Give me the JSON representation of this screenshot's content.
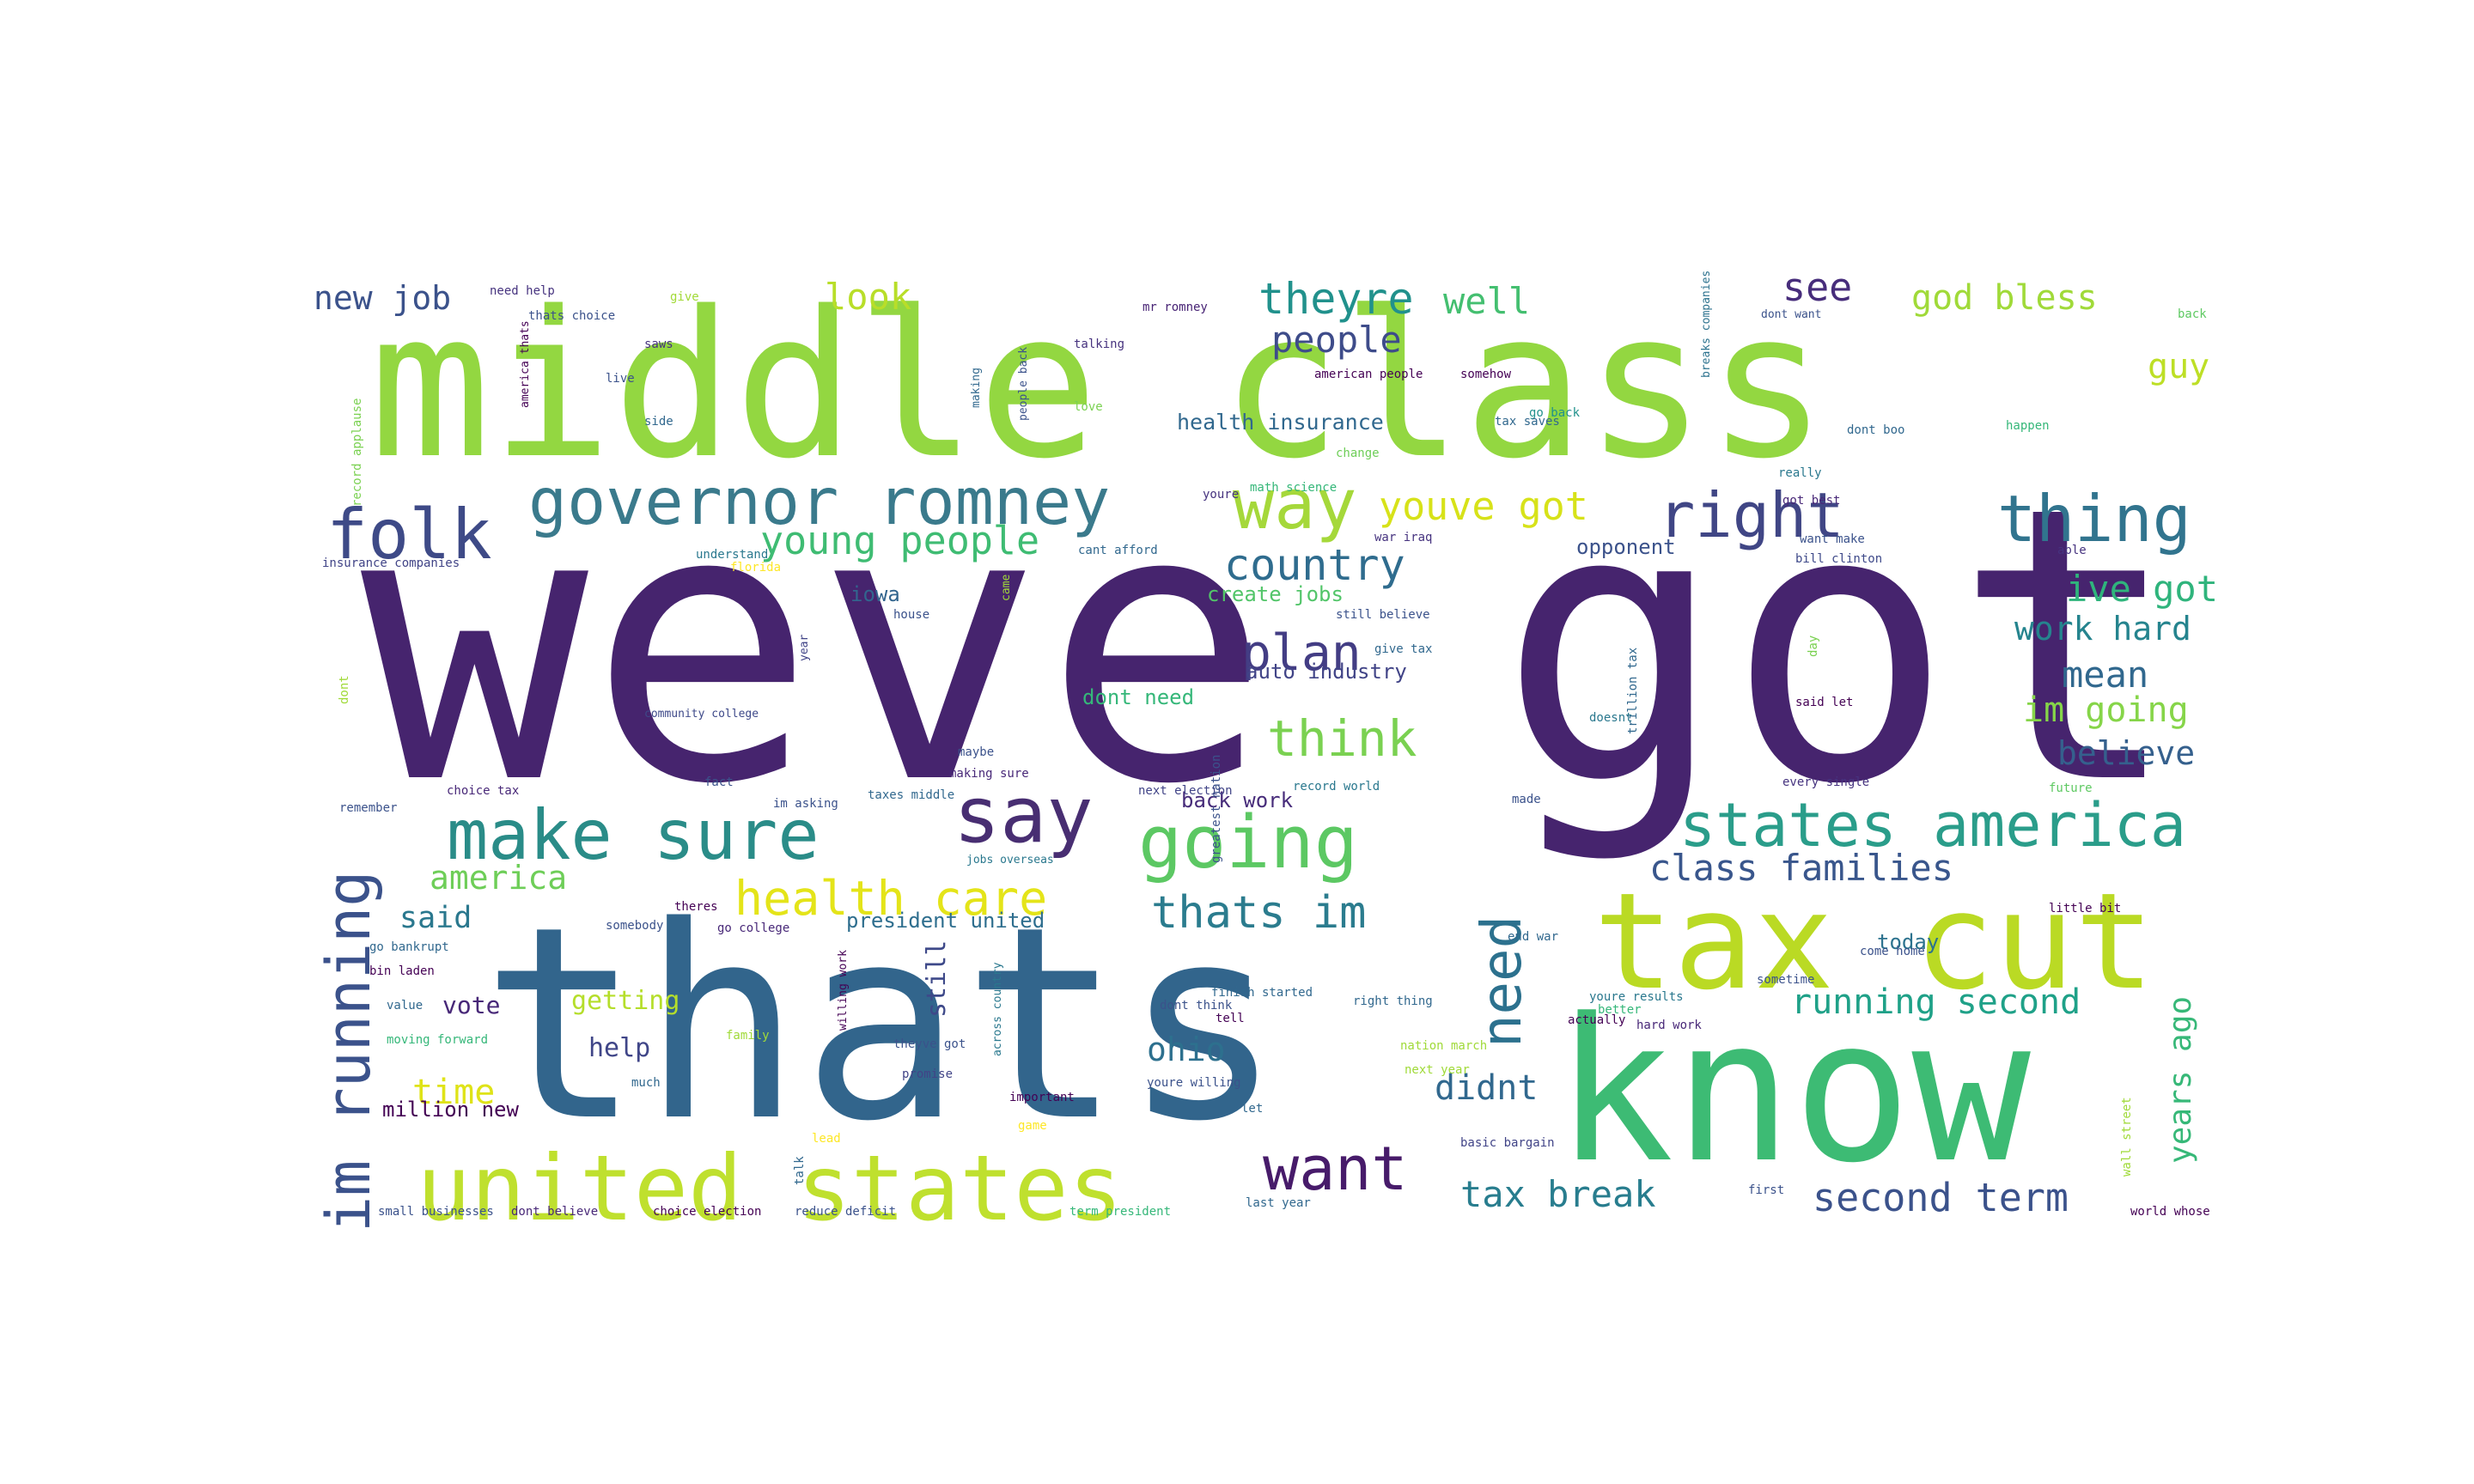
{
  "words": [
    {
      "text": "weve got",
      "color": "#46246e"
    },
    {
      "text": "middle class",
      "color": "#93d741"
    },
    {
      "text": "thats",
      "color": "#32658c"
    },
    {
      "text": "know",
      "color": "#3dbb74"
    },
    {
      "text": "tax cut",
      "color": "#bada24"
    },
    {
      "text": "united states",
      "color": "#bfe02e"
    },
    {
      "text": "governor romney",
      "color": "#3a7a8c"
    },
    {
      "text": "folk",
      "color": "#3e4a87"
    },
    {
      "text": "way",
      "color": "#a5d83a"
    },
    {
      "text": "right",
      "color": "#404685"
    },
    {
      "text": "thing",
      "color": "#31748e"
    },
    {
      "text": "make sure",
      "color": "#2a8c88"
    },
    {
      "text": "say",
      "color": "#482e72"
    },
    {
      "text": "going",
      "color": "#5cc863"
    },
    {
      "text": "states america",
      "color": "#2a9d8a"
    },
    {
      "text": "im running",
      "color": "#3b528b"
    },
    {
      "text": "health care",
      "color": "#e4e419"
    },
    {
      "text": "thats im",
      "color": "#2b7c8e"
    },
    {
      "text": "need",
      "color": "#2c718e"
    },
    {
      "text": "want",
      "color": "#471b6a"
    },
    {
      "text": "think",
      "color": "#7ad151"
    },
    {
      "text": "plan",
      "color": "#433d84"
    },
    {
      "text": "country",
      "color": "#2f6c8e"
    },
    {
      "text": "young people",
      "color": "#3fbc73"
    },
    {
      "text": "youve got",
      "color": "#d7e219"
    },
    {
      "text": "theyre",
      "color": "#21918c"
    },
    {
      "text": "well",
      "color": "#44bf70"
    },
    {
      "text": "people",
      "color": "#3e4c8a"
    },
    {
      "text": "look",
      "color": "#b8de29"
    },
    {
      "text": "new job",
      "color": "#3b528b"
    },
    {
      "text": "see",
      "color": "#472d7b"
    },
    {
      "text": "god bless",
      "color": "#a0da39"
    },
    {
      "text": "guy",
      "color": "#bddf26"
    },
    {
      "text": "ive got",
      "color": "#2fb47c"
    },
    {
      "text": "work hard",
      "color": "#25848e"
    },
    {
      "text": "mean",
      "color": "#31688e"
    },
    {
      "text": "im going",
      "color": "#86d549"
    },
    {
      "text": "believe",
      "color": "#35608d"
    },
    {
      "text": "class families",
      "color": "#39568c"
    },
    {
      "text": "america",
      "color": "#6ece58"
    },
    {
      "text": "said",
      "color": "#2a788e"
    },
    {
      "text": "running second",
      "color": "#1fa188"
    },
    {
      "text": "years ago",
      "color": "#37b878"
    },
    {
      "text": "tax break",
      "color": "#287d8e"
    },
    {
      "text": "second term",
      "color": "#3b528b"
    },
    {
      "text": "didnt",
      "color": "#31688e"
    },
    {
      "text": "ohio",
      "color": "#2d708e"
    },
    {
      "text": "time",
      "color": "#dfe318"
    },
    {
      "text": "help",
      "color": "#404688"
    },
    {
      "text": "vote",
      "color": "#482878"
    },
    {
      "text": "getting",
      "color": "#b5de2b"
    },
    {
      "text": "iowa",
      "color": "#32658e"
    },
    {
      "text": "create jobs",
      "color": "#52c569"
    },
    {
      "text": "auto industry",
      "color": "#414487"
    },
    {
      "text": "dont need",
      "color": "#35b779"
    },
    {
      "text": "back work",
      "color": "#472c7a"
    },
    {
      "text": "opponent",
      "color": "#3b528b"
    },
    {
      "text": "health insurance",
      "color": "#31688e"
    },
    {
      "text": "today",
      "color": "#2c728e"
    },
    {
      "text": "president united",
      "color": "#2e6e8e"
    },
    {
      "text": "million new",
      "color": "#440154"
    },
    {
      "text": "still",
      "color": "#3e4989"
    },
    {
      "text": "need help",
      "color": "#46337f"
    },
    {
      "text": "thats choice",
      "color": "#3b528b"
    },
    {
      "text": "give",
      "color": "#a2da37"
    },
    {
      "text": "mr romney",
      "color": "#482475"
    },
    {
      "text": "talking",
      "color": "#46327e"
    },
    {
      "text": "american people",
      "color": "#440154"
    },
    {
      "text": "people back",
      "color": "#3b528b"
    },
    {
      "text": "making",
      "color": "#31688e"
    },
    {
      "text": "love",
      "color": "#7ad151"
    },
    {
      "text": "change",
      "color": "#6ece58"
    },
    {
      "text": "dont want",
      "color": "#3b528b"
    },
    {
      "text": "somehow",
      "color": "#440154"
    },
    {
      "text": "go back",
      "color": "#21918c"
    },
    {
      "text": "tax saves",
      "color": "#31688e"
    },
    {
      "text": "dont boo",
      "color": "#31688e"
    },
    {
      "text": "happen",
      "color": "#35b779"
    },
    {
      "text": "breaks companies",
      "color": "#2c728e"
    },
    {
      "text": "back",
      "color": "#5ec962"
    },
    {
      "text": "got best",
      "color": "#482878"
    },
    {
      "text": "able",
      "color": "#46337f"
    },
    {
      "text": "bill clinton",
      "color": "#3e4989"
    },
    {
      "text": "want make",
      "color": "#3b528b"
    },
    {
      "text": "math science",
      "color": "#35b779"
    },
    {
      "text": "cant afford",
      "color": "#31688e"
    },
    {
      "text": "understand",
      "color": "#2a788e"
    },
    {
      "text": "insurance companies",
      "color": "#414487"
    },
    {
      "text": "florida",
      "color": "#fde725"
    },
    {
      "text": "record applause",
      "color": "#7ad151"
    },
    {
      "text": "america thats",
      "color": "#440154"
    },
    {
      "text": "saws",
      "color": "#46337f"
    },
    {
      "text": "live",
      "color": "#3b528b"
    },
    {
      "text": "side",
      "color": "#31688e"
    },
    {
      "text": "house",
      "color": "#3b528b"
    },
    {
      "text": "community college",
      "color": "#3e4989"
    },
    {
      "text": "im asking",
      "color": "#3b528b"
    },
    {
      "text": "maybe",
      "color": "#3b528b"
    },
    {
      "text": "making sure",
      "color": "#482878"
    },
    {
      "text": "taxes middle",
      "color": "#31688e"
    },
    {
      "text": "fact",
      "color": "#3b528b"
    },
    {
      "text": "choice tax",
      "color": "#482878"
    },
    {
      "text": "remember",
      "color": "#3b528b"
    },
    {
      "text": "dont",
      "color": "#a0da39"
    },
    {
      "text": "year",
      "color": "#414487"
    },
    {
      "text": "still believe",
      "color": "#3b528b"
    },
    {
      "text": "give tax",
      "color": "#31688e"
    },
    {
      "text": "said let",
      "color": "#440154"
    },
    {
      "text": "trillion tax",
      "color": "#31688e"
    },
    {
      "text": "doesnt",
      "color": "#2a788e"
    },
    {
      "text": "every single",
      "color": "#46337f"
    },
    {
      "text": "future",
      "color": "#5ec962"
    },
    {
      "text": "made",
      "color": "#3b528b"
    },
    {
      "text": "next election",
      "color": "#414487"
    },
    {
      "text": "record world",
      "color": "#2a788e"
    },
    {
      "text": "greatest nation",
      "color": "#3b528b"
    },
    {
      "text": "little bit",
      "color": "#440154"
    },
    {
      "text": "jobs overseas",
      "color": "#2a788e"
    },
    {
      "text": "theres",
      "color": "#440154"
    },
    {
      "text": "somebody",
      "color": "#3b528b"
    },
    {
      "text": "go college",
      "color": "#482878"
    },
    {
      "text": "go bankrupt",
      "color": "#31688e"
    },
    {
      "text": "bin laden",
      "color": "#440154"
    },
    {
      "text": "value",
      "color": "#31688e"
    },
    {
      "text": "moving forward",
      "color": "#35b779"
    },
    {
      "text": "family",
      "color": "#a0da39"
    },
    {
      "text": "willing work",
      "color": "#440154"
    },
    {
      "text": "theyve got",
      "color": "#3b528b"
    },
    {
      "text": "across country",
      "color": "#2a788e"
    },
    {
      "text": "finish started",
      "color": "#31688e"
    },
    {
      "text": "tell",
      "color": "#440154"
    },
    {
      "text": "dont think",
      "color": "#3b528b"
    },
    {
      "text": "right thing",
      "color": "#31688e"
    },
    {
      "text": "nation march",
      "color": "#a0da39"
    },
    {
      "text": "end war",
      "color": "#31688e"
    },
    {
      "text": "youre results",
      "color": "#2a788e"
    },
    {
      "text": "better",
      "color": "#35b779"
    },
    {
      "text": "actually",
      "color": "#440154"
    },
    {
      "text": "hard work",
      "color": "#482878"
    },
    {
      "text": "come home",
      "color": "#3b528b"
    },
    {
      "text": "much",
      "color": "#31688e"
    },
    {
      "text": "promise",
      "color": "#414487"
    },
    {
      "text": "important",
      "color": "#440154"
    },
    {
      "text": "youre willing",
      "color": "#3b528b"
    },
    {
      "text": "next year",
      "color": "#a0da39"
    },
    {
      "text": "basic bargain",
      "color": "#414487"
    },
    {
      "text": "wall street",
      "color": "#a0da39"
    },
    {
      "text": "world whose",
      "color": "#440154"
    },
    {
      "text": "small businesses",
      "color": "#3b528b"
    },
    {
      "text": "dont believe",
      "color": "#482878"
    },
    {
      "text": "choice election",
      "color": "#440154"
    },
    {
      "text": "reduce deficit",
      "color": "#3b528b"
    },
    {
      "text": "term president",
      "color": "#35b779"
    },
    {
      "text": "last year",
      "color": "#31688e"
    },
    {
      "text": "talk",
      "color": "#31688e"
    },
    {
      "text": "lead",
      "color": "#fde725"
    },
    {
      "text": "first",
      "color": "#3b528b"
    },
    {
      "text": "let",
      "color": "#31688e"
    },
    {
      "text": "game",
      "color": "#fde725"
    },
    {
      "text": "sometime",
      "color": "#3b528b"
    },
    {
      "text": "really",
      "color": "#2a788e"
    },
    {
      "text": "day",
      "color": "#7ad151"
    },
    {
      "text": "war iraq",
      "color": "#46337f"
    },
    {
      "text": "came",
      "color": "#a0da39"
    },
    {
      "text": "youre",
      "color": "#46337f"
    }
  ]
}
